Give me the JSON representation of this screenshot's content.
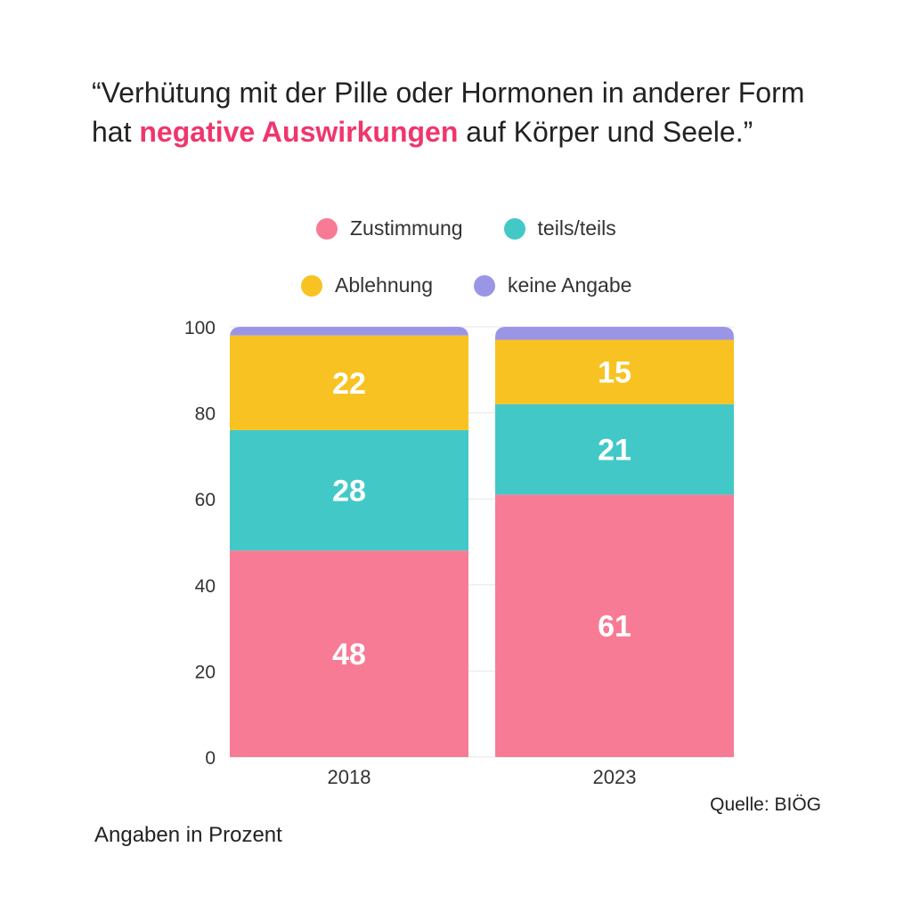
{
  "title": {
    "part1": "“Verhütung mit der Pille oder Hormonen in anderer Form hat ",
    "highlight": "negative Auswirkungen",
    "part2": " auf Körper und Seele.”",
    "highlight_color": "#f0366c"
  },
  "footnote": "Angaben in Prozent",
  "source": "Quelle: BIÖG",
  "chart_data": {
    "type": "bar",
    "stacked": true,
    "categories": [
      "2018",
      "2023"
    ],
    "series": [
      {
        "name": "Zustimmung",
        "color": "#f87b96",
        "values": [
          48,
          61
        ]
      },
      {
        "name": "teils/teils",
        "color": "#43c8c8",
        "values": [
          28,
          21
        ]
      },
      {
        "name": "Ablehnung",
        "color": "#f8c322",
        "values": [
          22,
          15
        ]
      },
      {
        "name": "keine Angabe",
        "color": "#9b95e8",
        "values": [
          2,
          3
        ]
      }
    ],
    "data_labels": [
      [
        "48",
        "61"
      ],
      [
        "28",
        "21"
      ],
      [
        "22",
        "15"
      ],
      [
        "",
        ""
      ]
    ],
    "ylim": [
      0,
      100
    ],
    "yticks": [
      "0",
      "20",
      "40",
      "60",
      "80",
      "100"
    ],
    "grid": true,
    "legend_position": "top"
  }
}
